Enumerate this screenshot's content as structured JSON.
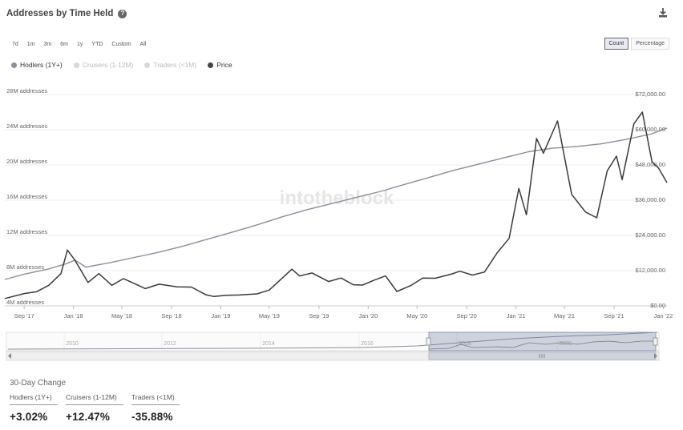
{
  "header": {
    "title": "Addresses by Time Held",
    "help_icon": "?"
  },
  "range_buttons": [
    "7d",
    "1m",
    "3m",
    "6m",
    "1y",
    "YTD",
    "Custom",
    "All"
  ],
  "mode_buttons": [
    {
      "label": "Count",
      "active": true
    },
    {
      "label": "Percentage",
      "active": false
    }
  ],
  "legend": [
    {
      "label": "Hodlers (1Y+)",
      "color": "#8a8f9a",
      "muted": false
    },
    {
      "label": "Cruisers (1-12M)",
      "color": "#d8d8d8",
      "muted": true
    },
    {
      "label": "Traders (<1M)",
      "color": "#d8d8d8",
      "muted": true
    },
    {
      "label": "Price",
      "color": "#444444",
      "muted": false
    }
  ],
  "watermark": "intotheblock",
  "chart_data": {
    "type": "line",
    "x_ticks": [
      "Sep '17",
      "Jan '18",
      "May '18",
      "Sep '18",
      "Jan '19",
      "May '19",
      "Sep '19",
      "Jan '20",
      "May '20",
      "Sep '20",
      "Jan '21",
      "May '21",
      "Sep '21",
      "Jan '22"
    ],
    "left_axis": {
      "ticks": [
        "4M addresses",
        "8M addresses",
        "12M addresses",
        "16M addresses",
        "20M addresses",
        "24M addresses",
        "28M addresses"
      ],
      "ylim": [
        4,
        28
      ]
    },
    "right_axis": {
      "ticks": [
        "$0.00",
        "$12,000.00",
        "$24,000.00",
        "$36,000.00",
        "$48,000.00",
        "$60,000.00",
        "$72,000.00"
      ],
      "ylim": [
        0,
        72000
      ]
    },
    "series": [
      {
        "name": "Hodlers (1Y+)",
        "axis": "left",
        "x": [
          "2017-07-15",
          "2017-09-01",
          "2017-11-01",
          "2017-12-15",
          "2018-01-05",
          "2018-02-01",
          "2018-04-01",
          "2018-06-01",
          "2018-08-01",
          "2018-10-01",
          "2018-12-01",
          "2019-02-01",
          "2019-04-01",
          "2019-06-01",
          "2019-08-01",
          "2019-10-01",
          "2019-12-01",
          "2020-02-01",
          "2020-04-01",
          "2020-06-01",
          "2020-08-01",
          "2020-10-01",
          "2020-12-01",
          "2021-02-01",
          "2021-04-01",
          "2021-06-01",
          "2021-08-01",
          "2021-10-01",
          "2021-12-01",
          "2022-01-10"
        ],
        "values": [
          7.0,
          7.6,
          8.2,
          8.8,
          9.2,
          8.4,
          8.9,
          9.5,
          10.1,
          10.8,
          11.6,
          12.4,
          13.2,
          14.1,
          14.9,
          15.6,
          16.3,
          17.0,
          17.8,
          18.6,
          19.4,
          20.1,
          20.8,
          21.5,
          21.9,
          22.1,
          22.4,
          22.9,
          23.5,
          24.2
        ]
      },
      {
        "name": "Price",
        "axis": "right",
        "x": [
          "2017-07-15",
          "2017-09-01",
          "2017-10-01",
          "2017-11-01",
          "2017-12-01",
          "2017-12-17",
          "2018-01-05",
          "2018-02-06",
          "2018-03-05",
          "2018-04-06",
          "2018-05-05",
          "2018-06-28",
          "2018-08-01",
          "2018-09-15",
          "2018-10-20",
          "2018-11-25",
          "2018-12-15",
          "2019-01-15",
          "2019-02-15",
          "2019-04-01",
          "2019-05-01",
          "2019-06-26",
          "2019-07-15",
          "2019-08-15",
          "2019-09-25",
          "2019-10-26",
          "2019-11-25",
          "2019-12-18",
          "2020-01-15",
          "2020-02-13",
          "2020-03-12",
          "2020-04-15",
          "2020-05-15",
          "2020-06-15",
          "2020-07-27",
          "2020-08-15",
          "2020-09-15",
          "2020-10-15",
          "2020-11-15",
          "2020-12-15",
          "2021-01-08",
          "2021-01-27",
          "2021-02-21",
          "2021-03-10",
          "2021-04-14",
          "2021-05-19",
          "2021-06-22",
          "2021-07-20",
          "2021-08-15",
          "2021-09-07",
          "2021-09-21",
          "2021-10-20",
          "2021-11-10",
          "2021-12-04",
          "2021-12-20",
          "2022-01-10"
        ],
        "values": [
          2500,
          4200,
          4800,
          7000,
          11000,
          19000,
          15500,
          8000,
          11000,
          7000,
          9300,
          5900,
          7400,
          6500,
          6400,
          3800,
          3200,
          3600,
          3700,
          4100,
          5400,
          12500,
          10200,
          11200,
          8300,
          9500,
          7200,
          7100,
          8700,
          10200,
          4900,
          6900,
          9500,
          9400,
          10900,
          11800,
          10500,
          11500,
          18000,
          23000,
          40000,
          31000,
          57000,
          52000,
          63000,
          38000,
          32000,
          30000,
          46000,
          51000,
          43000,
          62000,
          66000,
          49000,
          47000,
          42000
        ]
      }
    ],
    "navigator": {
      "labels": [
        "2010",
        "2012",
        "2014",
        "2016",
        "2018",
        "2020"
      ]
    }
  },
  "change_section": {
    "title": "30-Day Change",
    "items": [
      {
        "label": "Hodlers (1Y+)",
        "value": "+3.02%"
      },
      {
        "label": "Cruisers (1-12M)",
        "value": "+12.47%"
      },
      {
        "label": "Traders (<1M)",
        "value": "-35.88%"
      }
    ]
  }
}
